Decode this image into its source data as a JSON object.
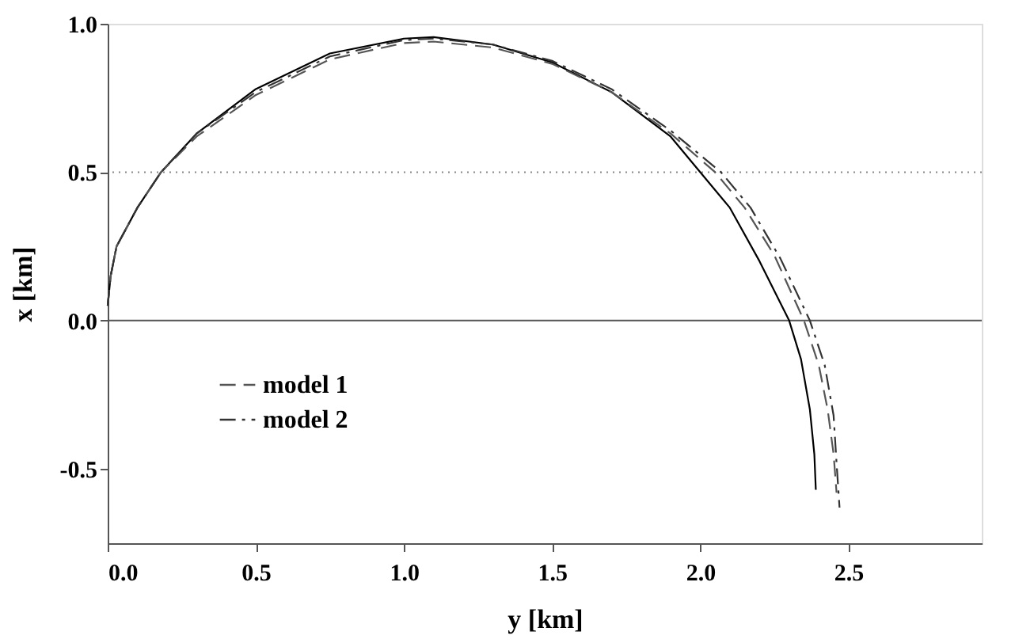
{
  "chart_data": {
    "type": "line",
    "xlabel": "y [km]",
    "ylabel": "x [km]",
    "xlim": [
      0,
      2.95
    ],
    "ylim": [
      -0.75,
      1.0
    ],
    "xticks": [
      {
        "value": 0,
        "label": "0.0"
      },
      0.5,
      {
        "value": 1,
        "label": "1.0"
      },
      1.5,
      {
        "value": 2,
        "label": "2.0"
      },
      2.5
    ],
    "yticks": [
      -0.5,
      {
        "value": 0,
        "label": "0.0"
      },
      0.5,
      {
        "value": 1,
        "label": "1.0"
      }
    ],
    "grid": false,
    "legend": "bottom left",
    "ref_lines": [
      {
        "axis": "y",
        "value": 0,
        "color": "#555555",
        "line_style": "solid"
      },
      {
        "axis": "y",
        "value": 0.5,
        "color": "#888888",
        "line_style": "dotted"
      }
    ],
    "series": [
      {
        "color": "#000000",
        "line_style": "solid",
        "x": [
          0,
          0.01,
          0.03,
          0.1,
          0.18,
          0.3,
          0.5,
          0.75,
          1.0,
          1.1,
          1.3,
          1.5,
          1.7,
          1.9,
          2.0,
          2.1,
          2.2,
          2.3,
          2.34,
          2.37,
          2.385,
          2.39
        ],
        "values": [
          0.05,
          0.15,
          0.25,
          0.38,
          0.5,
          0.63,
          0.78,
          0.9,
          0.95,
          0.955,
          0.93,
          0.87,
          0.77,
          0.62,
          0.5,
          0.38,
          0.2,
          0.0,
          -0.13,
          -0.3,
          -0.45,
          -0.57
        ]
      },
      {
        "name": "model 1",
        "color": "#555555",
        "line_style": "dashed",
        "x": [
          0,
          0.01,
          0.03,
          0.1,
          0.18,
          0.3,
          0.5,
          0.75,
          1.0,
          1.1,
          1.3,
          1.5,
          1.7,
          1.9,
          2.05,
          2.15,
          2.25,
          2.35,
          2.4,
          2.43,
          2.45,
          2.46
        ],
        "values": [
          0.05,
          0.15,
          0.25,
          0.38,
          0.5,
          0.62,
          0.76,
          0.88,
          0.935,
          0.94,
          0.92,
          0.865,
          0.77,
          0.63,
          0.5,
          0.38,
          0.22,
          0.0,
          -0.15,
          -0.3,
          -0.45,
          -0.58
        ]
      },
      {
        "name": "model 2",
        "color": "#333333",
        "line_style": "dashdot",
        "x": [
          0,
          0.01,
          0.03,
          0.1,
          0.18,
          0.3,
          0.5,
          0.75,
          1.0,
          1.1,
          1.3,
          1.5,
          1.7,
          1.9,
          2.07,
          2.17,
          2.27,
          2.37,
          2.42,
          2.45,
          2.46,
          2.47
        ],
        "values": [
          0.05,
          0.15,
          0.25,
          0.38,
          0.5,
          0.63,
          0.77,
          0.89,
          0.945,
          0.95,
          0.93,
          0.875,
          0.78,
          0.64,
          0.5,
          0.38,
          0.21,
          0.0,
          -0.15,
          -0.32,
          -0.48,
          -0.63
        ]
      }
    ]
  }
}
